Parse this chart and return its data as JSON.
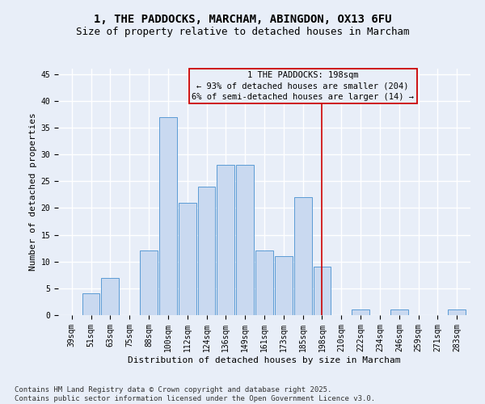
{
  "title": "1, THE PADDOCKS, MARCHAM, ABINGDON, OX13 6FU",
  "subtitle": "Size of property relative to detached houses in Marcham",
  "xlabel": "Distribution of detached houses by size in Marcham",
  "ylabel": "Number of detached properties",
  "bar_labels": [
    "39sqm",
    "51sqm",
    "63sqm",
    "75sqm",
    "88sqm",
    "100sqm",
    "112sqm",
    "124sqm",
    "136sqm",
    "149sqm",
    "161sqm",
    "173sqm",
    "185sqm",
    "198sqm",
    "210sqm",
    "222sqm",
    "234sqm",
    "246sqm",
    "259sqm",
    "271sqm",
    "283sqm"
  ],
  "bar_values": [
    0,
    4,
    7,
    0,
    12,
    37,
    21,
    24,
    28,
    28,
    12,
    11,
    22,
    9,
    0,
    1,
    0,
    1,
    0,
    0,
    1
  ],
  "bar_color": "#c9d9f0",
  "bar_edge_color": "#5b9bd5",
  "marker_index": 13,
  "marker_label": "1 THE PADDOCKS: 198sqm",
  "marker_line_color": "#cc0000",
  "annotation_line1": "← 93% of detached houses are smaller (204)",
  "annotation_line2": "6% of semi-detached houses are larger (14) →",
  "annotation_box_color": "#cc0000",
  "ylim": [
    0,
    46
  ],
  "yticks": [
    0,
    5,
    10,
    15,
    20,
    25,
    30,
    35,
    40,
    45
  ],
  "footer1": "Contains HM Land Registry data © Crown copyright and database right 2025.",
  "footer2": "Contains public sector information licensed under the Open Government Licence v3.0.",
  "background_color": "#e8eef8",
  "grid_color": "#ffffff",
  "title_fontsize": 10,
  "subtitle_fontsize": 9,
  "axis_fontsize": 8,
  "tick_fontsize": 7,
  "footer_fontsize": 6.5,
  "annotation_fontsize": 7.5
}
